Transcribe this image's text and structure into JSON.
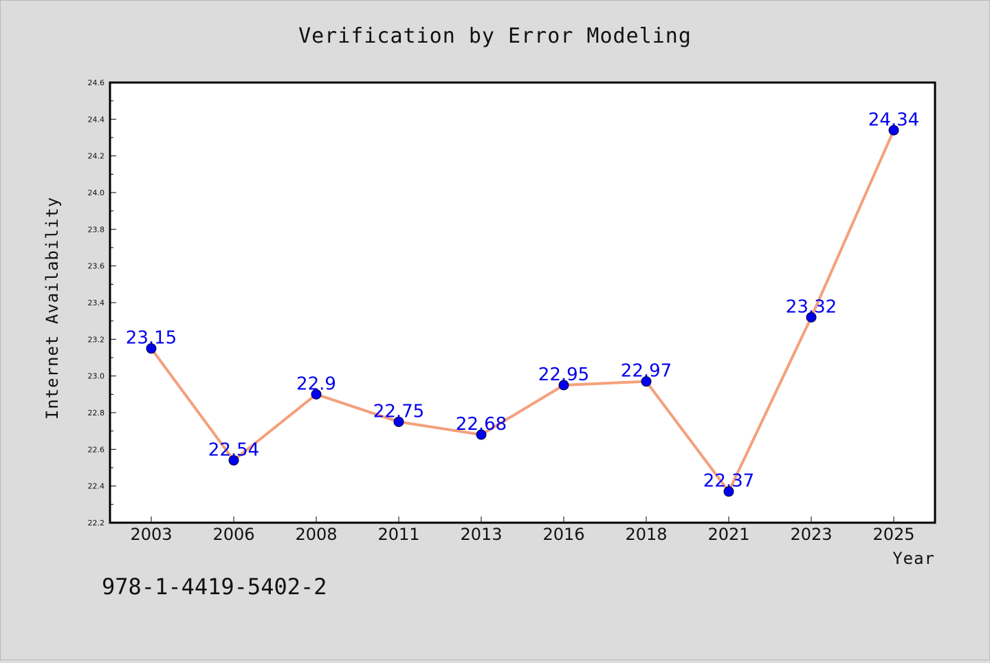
{
  "chart_data": {
    "type": "line",
    "title": "Verification by Error Modeling",
    "xlabel": "Year",
    "ylabel": "Internet Availability",
    "categories": [
      "2003",
      "2006",
      "2008",
      "2011",
      "2013",
      "2016",
      "2018",
      "2021",
      "2023",
      "2025"
    ],
    "series": [
      {
        "values": [
          23.15,
          22.54,
          22.9,
          22.75,
          22.68,
          22.95,
          22.97,
          22.37,
          23.32,
          24.34
        ],
        "data_labels": [
          "23.15",
          "22.54",
          "22.9",
          "22.75",
          "22.68",
          "22.95",
          "22.97",
          "22.37",
          "23.32",
          "24.34"
        ]
      }
    ],
    "ylim": [
      22.2,
      24.6
    ],
    "yticks": [
      "22.2",
      "22.4",
      "22.6",
      "22.8",
      "23.0",
      "23.2",
      "23.4",
      "23.6",
      "23.8",
      "24.0",
      "24.2",
      "24.4",
      "24.6"
    ],
    "grid": false,
    "legend": "none",
    "colors": {
      "line": "#f4a07c",
      "marker": "#0000ee",
      "label": "#0000ee",
      "background": "#dcdcdc",
      "plot_background": "#ffffff"
    }
  },
  "annotation": "978-1-4419-5402-2"
}
